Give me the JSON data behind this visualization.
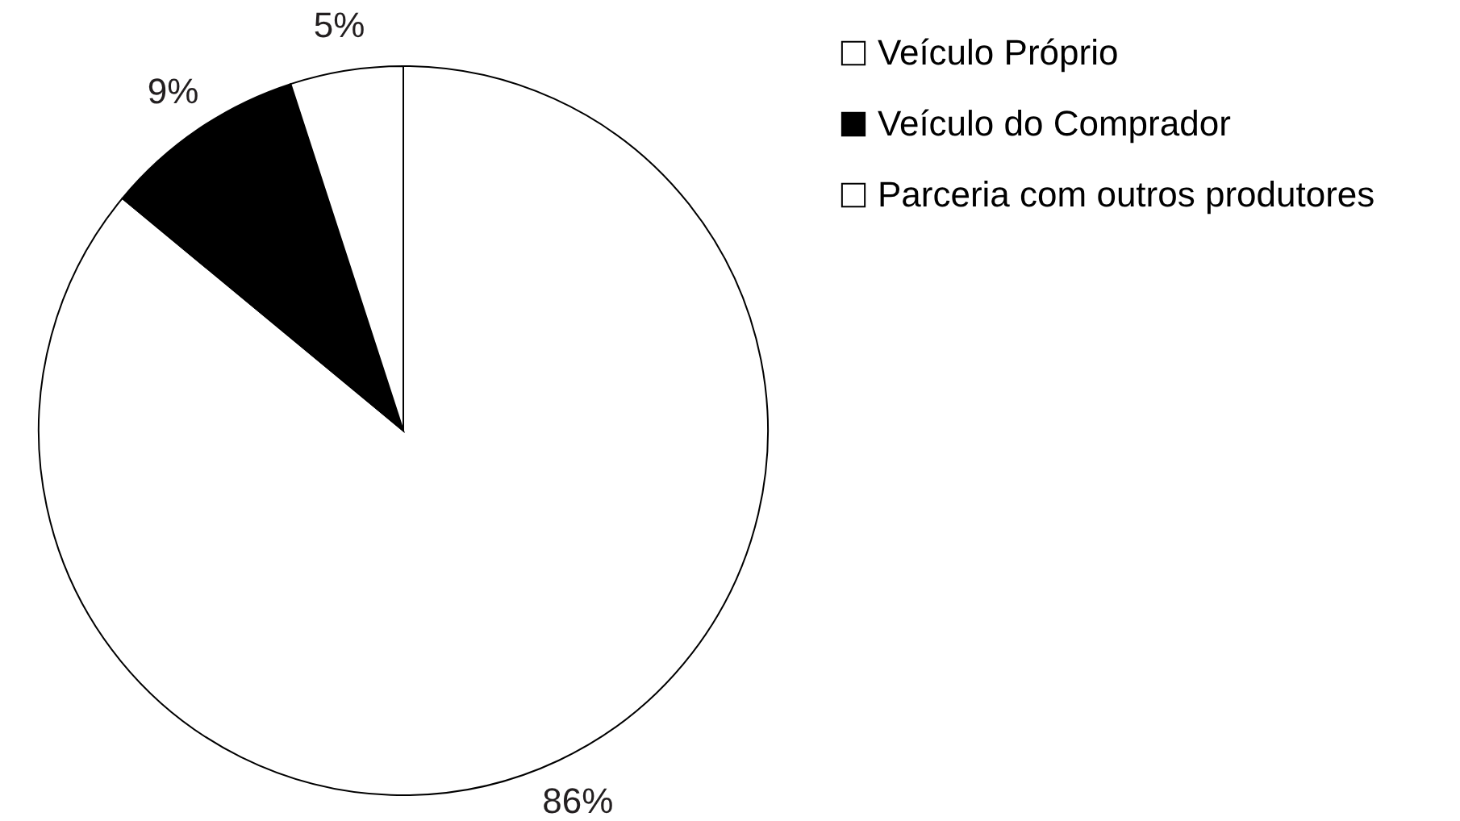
{
  "chart_data": {
    "type": "pie",
    "categories": [
      "Veículo Próprio",
      "Veículo do Comprador",
      "Parceria com outros produtores"
    ],
    "values": [
      86,
      9,
      5
    ],
    "colors": [
      "#ffffff",
      "#000000",
      "#ffffff"
    ],
    "value_labels": [
      "86%",
      "9%",
      "5%"
    ],
    "legend": "right"
  }
}
